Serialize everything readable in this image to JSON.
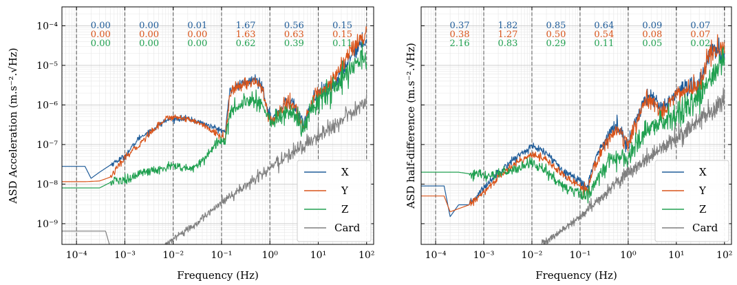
{
  "chart_data": [
    {
      "type": "line",
      "xlabel": "Frequency (Hz)",
      "ylabel": "ASD Acceleration (m.s⁻².√Hz)",
      "x_scale": "log",
      "y_scale": "log",
      "xlim": [
        5e-05,
        140
      ],
      "ylim": [
        3e-10,
        0.0003
      ],
      "x_ticks": [
        {
          "value": 0.0001,
          "label": "10⁻⁴"
        },
        {
          "value": 0.001,
          "label": "10⁻³"
        },
        {
          "value": 0.01,
          "label": "10⁻²"
        },
        {
          "value": 0.1,
          "label": "10⁻¹"
        },
        {
          "value": 1,
          "label": "10⁰"
        },
        {
          "value": 10,
          "label": "10¹"
        },
        {
          "value": 100,
          "label": "10²"
        }
      ],
      "y_ticks": [
        {
          "value": 1e-09,
          "label": "10⁻⁹"
        },
        {
          "value": 1e-08,
          "label": "10⁻⁸"
        },
        {
          "value": 1e-07,
          "label": "10⁻⁷"
        },
        {
          "value": 1e-06,
          "label": "10⁻⁶"
        },
        {
          "value": 1e-05,
          "label": "10⁻⁵"
        },
        {
          "value": 0.0001,
          "label": "10⁻⁴"
        }
      ],
      "grid": true,
      "legend_position": "bottom-right",
      "band_edges": [
        0.0001,
        0.001,
        0.01,
        0.1,
        1,
        10,
        100
      ],
      "band_values": {
        "X": [
          "0.00",
          "0.00",
          "0.01",
          "1.67",
          "0.56",
          "0.15"
        ],
        "Y": [
          "0.00",
          "0.00",
          "0.00",
          "1.63",
          "0.63",
          "0.15"
        ],
        "Z": [
          "0.00",
          "0.00",
          "0.00",
          "0.62",
          "0.39",
          "0.11"
        ]
      },
      "series": [
        {
          "name": "X",
          "color": "#1f5c99",
          "noise": 0.05,
          "points": [
            [
              5e-05,
              2.8e-08
            ],
            [
              0.00015,
              2.8e-08
            ],
            [
              0.0002,
              1.4e-08
            ],
            [
              0.0003,
              2e-08
            ],
            [
              0.0006,
              3.5e-08
            ],
            [
              0.001,
              5e-08
            ],
            [
              0.002,
              1.5e-07
            ],
            [
              0.004,
              2.5e-07
            ],
            [
              0.007,
              4e-07
            ],
            [
              0.01,
              4.5e-07
            ],
            [
              0.02,
              4.5e-07
            ],
            [
              0.04,
              3.5e-07
            ],
            [
              0.08,
              2.5e-07
            ],
            [
              0.12,
              2.1e-07
            ],
            [
              0.15,
              2.5e-06
            ],
            [
              0.3,
              3.5e-06
            ],
            [
              0.5,
              4.5e-06
            ],
            [
              0.7,
              3e-06
            ],
            [
              0.9,
              8e-07
            ],
            [
              1.1,
              4e-07
            ],
            [
              2,
              1.1e-06
            ],
            [
              3,
              1.2e-06
            ],
            [
              5,
              3e-07
            ],
            [
              8,
              1.5e-06
            ],
            [
              20,
              3e-06
            ],
            [
              50,
              2e-05
            ],
            [
              100,
              5e-05
            ]
          ]
        },
        {
          "name": "Y",
          "color": "#d9541a",
          "noise": 0.06,
          "points": [
            [
              5e-05,
              1.15e-08
            ],
            [
              0.00015,
              1.15e-08
            ],
            [
              0.0003,
              1.2e-08
            ],
            [
              0.0005,
              1.5e-08
            ],
            [
              0.001,
              4.5e-08
            ],
            [
              0.002,
              1e-07
            ],
            [
              0.004,
              2.5e-07
            ],
            [
              0.007,
              4.5e-07
            ],
            [
              0.01,
              5e-07
            ],
            [
              0.02,
              4.5e-07
            ],
            [
              0.04,
              3.2e-07
            ],
            [
              0.08,
              1.8e-07
            ],
            [
              0.12,
              1.5e-07
            ],
            [
              0.15,
              2e-06
            ],
            [
              0.3,
              3.5e-06
            ],
            [
              0.5,
              4e-06
            ],
            [
              0.7,
              2.5e-06
            ],
            [
              0.9,
              6e-07
            ],
            [
              1.1,
              3.5e-07
            ],
            [
              2,
              1e-06
            ],
            [
              3,
              1.1e-06
            ],
            [
              5,
              2.5e-07
            ],
            [
              8,
              1.5e-06
            ],
            [
              20,
              4e-06
            ],
            [
              50,
              2.5e-05
            ],
            [
              100,
              6e-05
            ]
          ]
        },
        {
          "name": "Z",
          "color": "#20a050",
          "noise": 0.09,
          "points": [
            [
              5e-05,
              8e-09
            ],
            [
              0.0003,
              8e-09
            ],
            [
              0.0005,
              1.1e-08
            ],
            [
              0.001,
              1.3e-08
            ],
            [
              0.002,
              1.8e-08
            ],
            [
              0.005,
              2.3e-08
            ],
            [
              0.01,
              3e-08
            ],
            [
              0.02,
              2.3e-08
            ],
            [
              0.03,
              2.8e-08
            ],
            [
              0.05,
              5e-08
            ],
            [
              0.08,
              1.2e-07
            ],
            [
              0.12,
              1.3e-07
            ],
            [
              0.15,
              7e-07
            ],
            [
              0.3,
              1.2e-06
            ],
            [
              0.5,
              1.5e-06
            ],
            [
              0.7,
              1e-06
            ],
            [
              0.9,
              5e-07
            ],
            [
              1.1,
              3.5e-07
            ],
            [
              2,
              6e-07
            ],
            [
              3,
              7e-07
            ],
            [
              5,
              2e-07
            ],
            [
              8,
              1e-06
            ],
            [
              20,
              2.5e-06
            ],
            [
              50,
              1e-05
            ],
            [
              100,
              1.5e-05
            ]
          ]
        },
        {
          "name": "Card",
          "color": "#7f7f7f",
          "noise": 0.06,
          "points": [
            [
              5e-05,
              6.5e-10
            ],
            [
              0.0004,
              6.5e-10
            ],
            [
              0.0005,
              2.5e-10
            ],
            [
              0.005,
              2e-10
            ],
            [
              0.01,
              4e-10
            ],
            [
              0.03,
              1e-09
            ],
            [
              0.1,
              3.5e-09
            ],
            [
              1,
              2.5e-08
            ],
            [
              10,
              1.6e-07
            ],
            [
              100,
              1.2e-06
            ]
          ]
        }
      ]
    },
    {
      "type": "line",
      "xlabel": "Frequency (Hz)",
      "ylabel": "ASD half-difference (m.s⁻².√Hz)",
      "x_scale": "log",
      "y_scale": "log",
      "xlim": [
        5e-05,
        140
      ],
      "ylim": [
        3e-10,
        0.0003
      ],
      "x_ticks": [
        {
          "value": 0.0001,
          "label": "10⁻⁴"
        },
        {
          "value": 0.001,
          "label": "10⁻³"
        },
        {
          "value": 0.01,
          "label": "10⁻²"
        },
        {
          "value": 0.1,
          "label": "10⁻¹"
        },
        {
          "value": 1,
          "label": "10⁰"
        },
        {
          "value": 10,
          "label": "10¹"
        },
        {
          "value": 100,
          "label": "10²"
        }
      ],
      "y_ticks": [
        {
          "value": 1e-09,
          "label": ""
        },
        {
          "value": 1e-08,
          "label": ""
        },
        {
          "value": 1e-07,
          "label": ""
        },
        {
          "value": 1e-06,
          "label": ""
        },
        {
          "value": 1e-05,
          "label": ""
        },
        {
          "value": 0.0001,
          "label": ""
        }
      ],
      "grid": true,
      "legend_position": "bottom-right",
      "band_edges": [
        0.0001,
        0.001,
        0.01,
        0.1,
        1,
        10,
        100
      ],
      "band_values": {
        "X": [
          "0.37",
          "1.82",
          "0.85",
          "0.64",
          "0.09",
          "0.07"
        ],
        "Y": [
          "0.38",
          "1.27",
          "0.50",
          "0.54",
          "0.08",
          "0.07"
        ],
        "Z": [
          "2.16",
          "0.83",
          "0.29",
          "0.11",
          "0.05",
          "0.02"
        ]
      },
      "series": [
        {
          "name": "X",
          "color": "#1f5c99",
          "noise": 0.07,
          "points": [
            [
              5e-05,
              9e-09
            ],
            [
              0.00015,
              9e-09
            ],
            [
              0.0002,
              1.5e-09
            ],
            [
              0.0003,
              3e-09
            ],
            [
              0.0005,
              3e-09
            ],
            [
              0.001,
              8e-09
            ],
            [
              0.002,
              2e-08
            ],
            [
              0.005,
              5e-08
            ],
            [
              0.01,
              9e-08
            ],
            [
              0.02,
              6e-08
            ],
            [
              0.05,
              2e-08
            ],
            [
              0.1,
              1.2e-08
            ],
            [
              0.14,
              8e-09
            ],
            [
              0.2,
              4e-08
            ],
            [
              0.4,
              2e-07
            ],
            [
              0.6,
              3e-07
            ],
            [
              1,
              1e-07
            ],
            [
              2,
              1.2e-06
            ],
            [
              3,
              1.5e-06
            ],
            [
              5,
              8e-07
            ],
            [
              10,
              2e-06
            ],
            [
              30,
              3e-06
            ],
            [
              50,
              2.5e-05
            ],
            [
              100,
              2e-05
            ]
          ]
        },
        {
          "name": "Y",
          "color": "#d9541a",
          "noise": 0.07,
          "points": [
            [
              5e-05,
              5e-09
            ],
            [
              0.00015,
              5e-09
            ],
            [
              0.0002,
              2e-09
            ],
            [
              0.0005,
              3e-09
            ],
            [
              0.001,
              6e-09
            ],
            [
              0.002,
              1.5e-08
            ],
            [
              0.005,
              3.5e-08
            ],
            [
              0.01,
              6e-08
            ],
            [
              0.02,
              4e-08
            ],
            [
              0.05,
              1.5e-08
            ],
            [
              0.1,
              9e-09
            ],
            [
              0.14,
              7e-09
            ],
            [
              0.2,
              3e-08
            ],
            [
              0.4,
              1.5e-07
            ],
            [
              0.6,
              2.5e-07
            ],
            [
              1,
              9e-08
            ],
            [
              2,
              1e-06
            ],
            [
              3,
              1.2e-06
            ],
            [
              5,
              7e-07
            ],
            [
              10,
              1.8e-06
            ],
            [
              30,
              3e-06
            ],
            [
              50,
              2e-05
            ],
            [
              100,
              2.5e-05
            ]
          ]
        },
        {
          "name": "Z",
          "color": "#20a050",
          "noise": 0.1,
          "points": [
            [
              5e-05,
              2e-08
            ],
            [
              0.0001,
              2e-08
            ],
            [
              0.0003,
              2e-08
            ],
            [
              0.001,
              1.6e-08
            ],
            [
              0.003,
              2e-08
            ],
            [
              0.01,
              3.5e-08
            ],
            [
              0.02,
              2e-08
            ],
            [
              0.05,
              8e-09
            ],
            [
              0.1,
              6e-09
            ],
            [
              0.14,
              5e-09
            ],
            [
              0.2,
              1e-08
            ],
            [
              0.4,
              4e-08
            ],
            [
              1,
              5e-08
            ],
            [
              2,
              2e-07
            ],
            [
              3,
              3e-07
            ],
            [
              5,
              4e-07
            ],
            [
              10,
              6e-07
            ],
            [
              30,
              1.5e-06
            ],
            [
              50,
              4e-06
            ],
            [
              100,
              1.5e-05
            ]
          ]
        },
        {
          "name": "Card",
          "color": "#7f7f7f",
          "noise": 0.06,
          "points": [
            [
              0.01,
              2e-10
            ],
            [
              0.03,
              5e-10
            ],
            [
              0.1,
              1.5e-09
            ],
            [
              1,
              2e-08
            ],
            [
              10,
              1.5e-07
            ],
            [
              100,
              1.2e-06
            ]
          ]
        }
      ]
    }
  ]
}
